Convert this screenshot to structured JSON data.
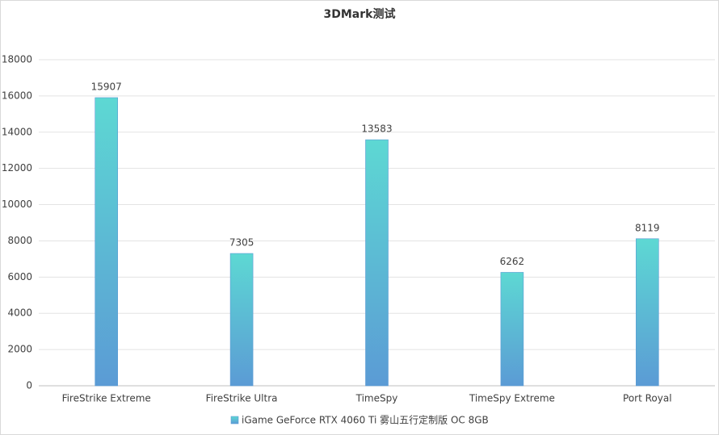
{
  "chart_data": {
    "type": "bar",
    "title": "3DMark测试",
    "categories": [
      "FireStrike Extreme",
      "FireStrike Ultra",
      "TimeSpy",
      "TimeSpy Extreme",
      "Port Royal"
    ],
    "series": [
      {
        "name": "iGame GeForce RTX 4060 Ti 雾山五行定制版 OC 8GB",
        "color": "#5dd8d3",
        "color_bottom": "#5b9bd5",
        "values": [
          15907,
          7305,
          13583,
          6262,
          8119
        ]
      }
    ],
    "ylim": [
      0,
      18000
    ],
    "yticks": [
      0,
      2000,
      4000,
      6000,
      8000,
      10000,
      12000,
      14000,
      16000,
      18000
    ],
    "grid": true,
    "legend": "bottom"
  }
}
